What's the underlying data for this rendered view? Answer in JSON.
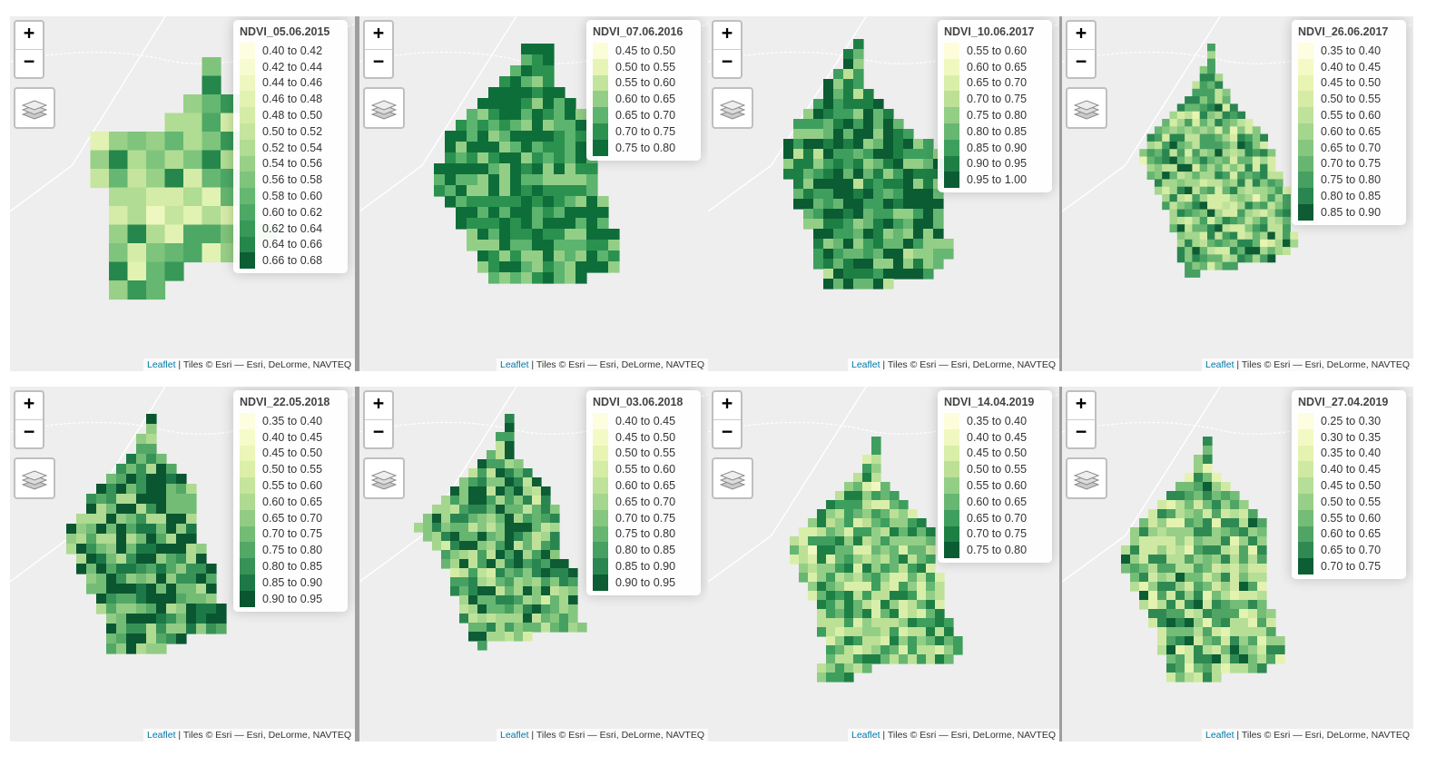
{
  "attribution": {
    "link": "Leaflet",
    "text": " | Tiles © Esri — Esri, DeLorme, NAVTEQ"
  },
  "zoom_in_symbol": "+",
  "zoom_out_symbol": "−",
  "maps": [
    {
      "title": "NDVI_05.06.2015",
      "legend": [
        "0.40 to 0.42",
        "0.42 to 0.44",
        "0.44 to 0.46",
        "0.46 to 0.48",
        "0.48 to 0.50",
        "0.50 to 0.52",
        "0.52 to 0.54",
        "0.54 to 0.56",
        "0.56 to 0.58",
        "0.58 to 0.60",
        "0.60 to 0.62",
        "0.62 to 0.64",
        "0.64 to 0.66",
        "0.66 to 0.68"
      ],
      "colors": [
        "#fdfde2",
        "#f7fbd2",
        "#eef7bf",
        "#e2f2b2",
        "#d5eca8",
        "#c5e59e",
        "#b0dc93",
        "#98d087",
        "#7fc47c",
        "#65b771",
        "#4da865",
        "#379858",
        "#25874b",
        "#0d5e34"
      ]
    },
    {
      "title": "NDVI_07.06.2016",
      "legend": [
        "0.45 to 0.50",
        "0.50 to 0.55",
        "0.55 to 0.60",
        "0.60 to 0.65",
        "0.65 to 0.70",
        "0.70 to 0.75",
        "0.75 to 0.80"
      ],
      "colors": [
        "#fbfdd8",
        "#e6f5b6",
        "#c2e49d",
        "#93ce86",
        "#5cb46e",
        "#2b914f",
        "#0e6e39"
      ]
    },
    {
      "title": "NDVI_10.06.2017",
      "legend": [
        "0.55 to 0.60",
        "0.60 to 0.65",
        "0.65 to 0.70",
        "0.70 to 0.75",
        "0.75 to 0.80",
        "0.80 to 0.85",
        "0.85 to 0.90",
        "0.90 to 0.95",
        "0.95 to 1.00"
      ],
      "colors": [
        "#fdfddb",
        "#f0f8c0",
        "#d9efa9",
        "#bbe096",
        "#93ce86",
        "#67b772",
        "#3e9e5d",
        "#1e7f45",
        "#0b5c32"
      ]
    },
    {
      "title": "NDVI_26.06.2017",
      "legend": [
        "0.35 to 0.40",
        "0.40 to 0.45",
        "0.45 to 0.50",
        "0.50 to 0.55",
        "0.55 to 0.60",
        "0.60 to 0.65",
        "0.65 to 0.70",
        "0.70 to 0.75",
        "0.75 to 0.80",
        "0.80 to 0.85",
        "0.85 to 0.90"
      ],
      "colors": [
        "#fdfde0",
        "#f4fac6",
        "#e7f4b2",
        "#d5eca5",
        "#bfe29a",
        "#a4d68e",
        "#86c77f",
        "#66b571",
        "#46a061",
        "#2a8650",
        "#0d5c34"
      ]
    },
    {
      "title": "NDVI_22.05.2018",
      "legend": [
        "0.35 to 0.40",
        "0.40 to 0.45",
        "0.45 to 0.50",
        "0.50 to 0.55",
        "0.55 to 0.60",
        "0.60 to 0.65",
        "0.65 to 0.70",
        "0.70 to 0.75",
        "0.75 to 0.80",
        "0.80 to 0.85",
        "0.85 to 0.90",
        "0.90 to 0.95"
      ],
      "colors": [
        "#fdfde0",
        "#f6fbca",
        "#ebf6b8",
        "#dbefa8",
        "#c6e59c",
        "#aeda91",
        "#92cc84",
        "#73bc75",
        "#54a866",
        "#379257",
        "#1c7947",
        "#0a5631"
      ]
    },
    {
      "title": "NDVI_03.06.2018",
      "legend": [
        "0.40 to 0.45",
        "0.45 to 0.50",
        "0.50 to 0.55",
        "0.55 to 0.60",
        "0.60 to 0.65",
        "0.65 to 0.70",
        "0.70 to 0.75",
        "0.75 to 0.80",
        "0.80 to 0.85",
        "0.85 to 0.90",
        "0.90 to 0.95"
      ],
      "colors": [
        "#fdfde0",
        "#f4fac6",
        "#e7f4b2",
        "#d5eca5",
        "#bfe29a",
        "#a4d68e",
        "#86c77f",
        "#66b571",
        "#46a061",
        "#2a8650",
        "#0d5c34"
      ]
    },
    {
      "title": "NDVI_14.04.2019",
      "legend": [
        "0.35 to 0.40",
        "0.40 to 0.45",
        "0.45 to 0.50",
        "0.50 to 0.55",
        "0.55 to 0.60",
        "0.60 to 0.65",
        "0.65 to 0.70",
        "0.70 to 0.75",
        "0.75 to 0.80"
      ],
      "colors": [
        "#fdfddb",
        "#f0f8c0",
        "#d9efa9",
        "#bbe096",
        "#93ce86",
        "#67b772",
        "#3e9e5d",
        "#1e7f45",
        "#0b5c32"
      ]
    },
    {
      "title": "NDVI_27.04.2019",
      "legend": [
        "0.25 to 0.30",
        "0.30 to 0.35",
        "0.35 to 0.40",
        "0.40 to 0.45",
        "0.45 to 0.50",
        "0.50 to 0.55",
        "0.55 to 0.60",
        "0.60 to 0.65",
        "0.65 to 0.70",
        "0.70 to 0.75"
      ],
      "colors": [
        "#fdfde0",
        "#f3f9c4",
        "#e4f3b0",
        "#cfe9a2",
        "#b5de96",
        "#97cf88",
        "#74bd77",
        "#50a565",
        "#2e8a52",
        "#0c5e34"
      ]
    }
  ]
}
